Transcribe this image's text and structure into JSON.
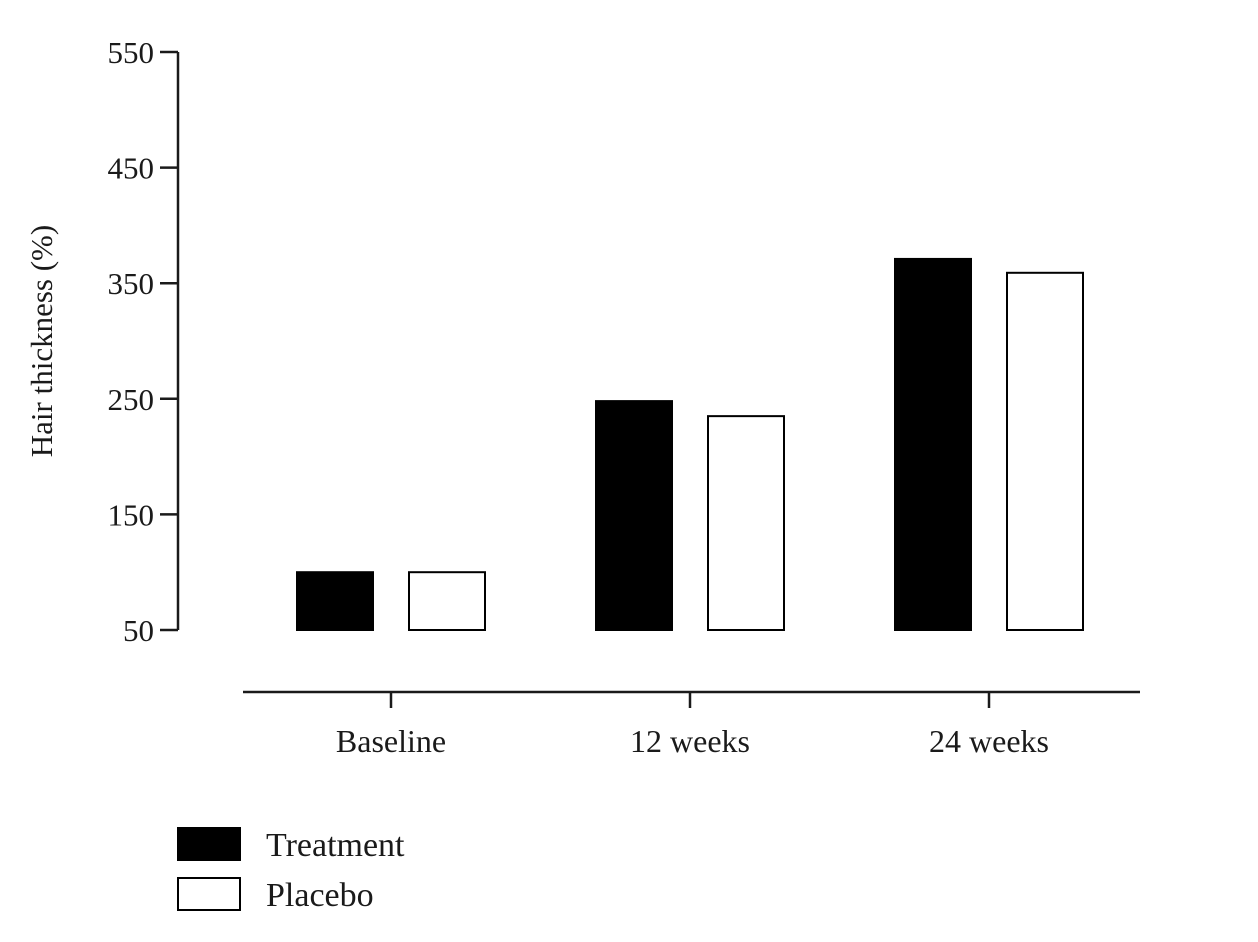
{
  "chart_data": {
    "type": "bar",
    "ylabel": "Hair thickness (%)",
    "xlabel": "",
    "ylim": [
      50,
      550
    ],
    "yticks": [
      "550",
      "450",
      "350",
      "250",
      "150",
      "50"
    ],
    "categories": [
      "Baseline",
      "12 weeks",
      "24 weeks"
    ],
    "series": [
      {
        "name": "Treatment",
        "values": [
          100,
          248,
          371
        ],
        "color": "#000000"
      },
      {
        "name": "Placebo",
        "values": [
          100,
          235,
          359
        ],
        "color": "#ffffff"
      }
    ],
    "grid": false,
    "legend_position": "bottom-left"
  }
}
